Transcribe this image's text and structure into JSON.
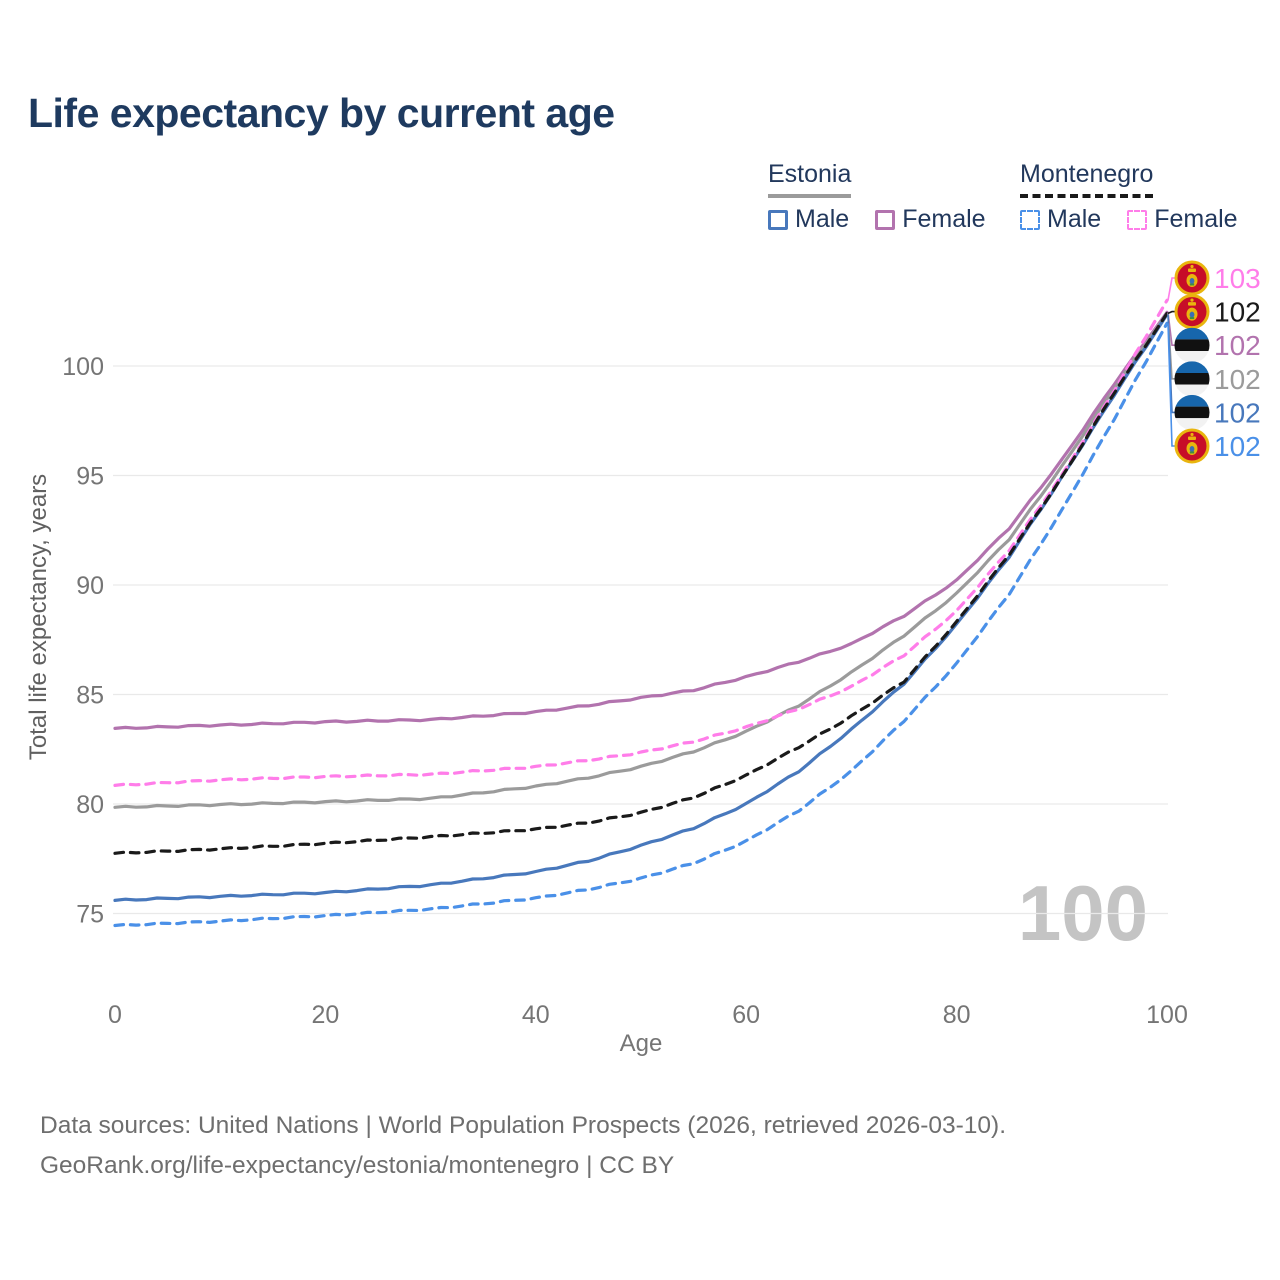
{
  "title": "Life expectancy by current age",
  "legend": {
    "groups": [
      {
        "country": "Estonia",
        "line_style": "solid",
        "underline_color": "#9b9b9b",
        "items": [
          {
            "label": "Male",
            "color": "#4878bc"
          },
          {
            "label": "Female",
            "color": "#b273ae"
          }
        ]
      },
      {
        "country": "Montenegro",
        "line_style": "dashed",
        "underline_color": "#1a1a1a",
        "items": [
          {
            "label": "Male",
            "color": "#4a90e8"
          },
          {
            "label": "Female",
            "color": "#ff7de9"
          }
        ]
      }
    ]
  },
  "chart_data": {
    "type": "line",
    "title": "Life expectancy by current age",
    "xlabel": "Age",
    "ylabel": "Total life expectancy, years",
    "x_ticks": [
      0,
      20,
      40,
      60,
      80,
      100
    ],
    "y_ticks": [
      75,
      80,
      85,
      90,
      95,
      100
    ],
    "xlim": [
      0,
      100
    ],
    "ylim": [
      73.5,
      104.5
    ],
    "grid": "horizontal",
    "legend_position": "top-right",
    "watermark": "100",
    "axis_color": "#757575",
    "grid_color": "#e9e9e9",
    "series": [
      {
        "id": "est-female",
        "name": "Estonia Female",
        "color": "#b273ae",
        "dashed": false,
        "label_row": 2,
        "points": [
          [
            0,
            83.45
          ],
          [
            10,
            83.6
          ],
          [
            20,
            83.75
          ],
          [
            30,
            83.85
          ],
          [
            40,
            84.2
          ],
          [
            45,
            84.5
          ],
          [
            50,
            84.85
          ],
          [
            55,
            85.2
          ],
          [
            60,
            85.8
          ],
          [
            65,
            86.5
          ],
          [
            70,
            87.3
          ],
          [
            75,
            88.6
          ],
          [
            80,
            90.2
          ],
          [
            85,
            92.6
          ],
          [
            90,
            95.7
          ],
          [
            95,
            99.2
          ],
          [
            100,
            102.45
          ]
        ]
      },
      {
        "id": "est-total",
        "name": "Estonia Total",
        "color": "#9b9b9b",
        "dashed": false,
        "label_row": 3,
        "points": [
          [
            0,
            79.85
          ],
          [
            10,
            79.97
          ],
          [
            20,
            80.1
          ],
          [
            30,
            80.25
          ],
          [
            40,
            80.8
          ],
          [
            45,
            81.2
          ],
          [
            50,
            81.7
          ],
          [
            55,
            82.4
          ],
          [
            60,
            83.3
          ],
          [
            65,
            84.5
          ],
          [
            70,
            86.0
          ],
          [
            75,
            87.7
          ],
          [
            80,
            89.6
          ],
          [
            85,
            92.1
          ],
          [
            90,
            95.4
          ],
          [
            95,
            99.0
          ],
          [
            100,
            102.4
          ]
        ]
      },
      {
        "id": "est-male",
        "name": "Estonia Male",
        "color": "#4878bc",
        "dashed": false,
        "label_row": 4,
        "points": [
          [
            0,
            75.6
          ],
          [
            10,
            75.78
          ],
          [
            20,
            75.95
          ],
          [
            30,
            76.3
          ],
          [
            40,
            76.9
          ],
          [
            45,
            77.4
          ],
          [
            50,
            78.1
          ],
          [
            55,
            78.9
          ],
          [
            60,
            80.0
          ],
          [
            65,
            81.5
          ],
          [
            70,
            83.4
          ],
          [
            75,
            85.5
          ],
          [
            80,
            88.2
          ],
          [
            85,
            91.3
          ],
          [
            90,
            94.9
          ],
          [
            95,
            98.7
          ],
          [
            100,
            102.35
          ]
        ]
      },
      {
        "id": "mne-female",
        "name": "Montenegro Female",
        "color": "#ff7de9",
        "dashed": true,
        "label_row": 0,
        "points": [
          [
            0,
            80.85
          ],
          [
            10,
            81.1
          ],
          [
            20,
            81.25
          ],
          [
            30,
            81.35
          ],
          [
            40,
            81.7
          ],
          [
            45,
            82.0
          ],
          [
            50,
            82.35
          ],
          [
            55,
            82.85
          ],
          [
            60,
            83.5
          ],
          [
            65,
            84.35
          ],
          [
            70,
            85.35
          ],
          [
            75,
            86.8
          ],
          [
            80,
            88.8
          ],
          [
            85,
            91.6
          ],
          [
            90,
            95.0
          ],
          [
            95,
            98.9
          ],
          [
            100,
            103.0
          ]
        ]
      },
      {
        "id": "mne-total",
        "name": "Montenegro Total",
        "color": "#1a1a1a",
        "dashed": true,
        "label_row": 1,
        "points": [
          [
            0,
            77.75
          ],
          [
            10,
            77.95
          ],
          [
            20,
            78.2
          ],
          [
            30,
            78.5
          ],
          [
            40,
            78.85
          ],
          [
            45,
            79.15
          ],
          [
            50,
            79.6
          ],
          [
            55,
            80.3
          ],
          [
            60,
            81.3
          ],
          [
            65,
            82.6
          ],
          [
            70,
            84.0
          ],
          [
            75,
            85.6
          ],
          [
            80,
            88.3
          ],
          [
            85,
            91.4
          ],
          [
            90,
            94.9
          ],
          [
            95,
            98.8
          ],
          [
            100,
            102.4
          ]
        ]
      },
      {
        "id": "mne-male",
        "name": "Montenegro Male",
        "color": "#4a90e8",
        "dashed": true,
        "label_row": 5,
        "points": [
          [
            0,
            74.45
          ],
          [
            10,
            74.65
          ],
          [
            20,
            74.9
          ],
          [
            30,
            75.2
          ],
          [
            40,
            75.7
          ],
          [
            45,
            76.1
          ],
          [
            50,
            76.6
          ],
          [
            55,
            77.3
          ],
          [
            60,
            78.3
          ],
          [
            65,
            79.7
          ],
          [
            70,
            81.5
          ],
          [
            75,
            83.8
          ],
          [
            80,
            86.4
          ],
          [
            85,
            89.6
          ],
          [
            90,
            93.4
          ],
          [
            95,
            97.6
          ],
          [
            100,
            101.95
          ]
        ]
      }
    ],
    "end_labels": [
      {
        "value": "103",
        "color": "#ff7de9",
        "flag": "montenegro"
      },
      {
        "value": "102",
        "color": "#1a1a1a",
        "flag": "montenegro"
      },
      {
        "value": "102",
        "color": "#b273ae",
        "flag": "estonia"
      },
      {
        "value": "102",
        "color": "#9b9b9b",
        "flag": "estonia"
      },
      {
        "value": "102",
        "color": "#4878bc",
        "flag": "estonia"
      },
      {
        "value": "102",
        "color": "#4a90e8",
        "flag": "montenegro"
      }
    ]
  },
  "footer": {
    "line1": "Data sources: United Nations | World Population Prospects (2026, retrieved 2026-03-10).",
    "line2": "GeoRank.org/life-expectancy/estonia/montenegro | CC BY"
  }
}
